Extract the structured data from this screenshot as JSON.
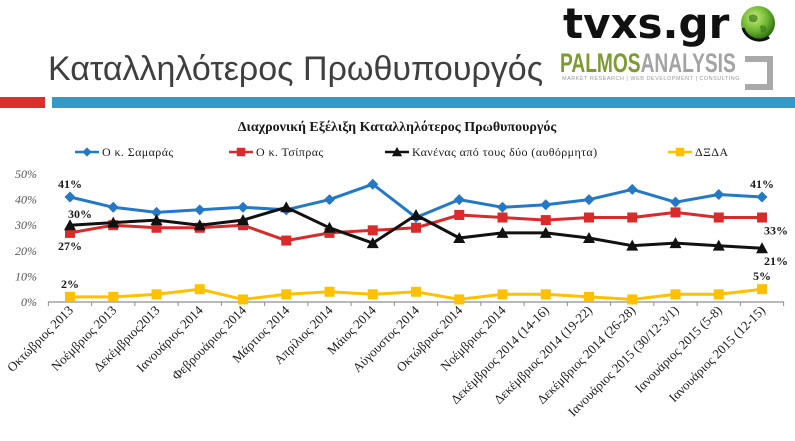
{
  "slide": {
    "title": "Καταλληλότερος Πρωθυπουργός"
  },
  "logos": {
    "tvxs": {
      "text": "tvxs.gr",
      "icon": "globe-icon"
    },
    "palmos": {
      "word1": "PALMOS",
      "word2": "ANALYSIS",
      "tagline": "MARKET RESEARCH | WEB DEVELOPMENT | CONSULTING"
    }
  },
  "colors": {
    "accent_red": "#d9302b",
    "accent_teal": "#3399c6",
    "title_text": "#3f3f3f",
    "palmos_green": "#7e9a33",
    "palmos_gray": "#a3a3a3"
  },
  "chart_data": {
    "type": "line",
    "title": "Διαχρονική Εξέλιξη Καταλληλότερος Πρωθυπουργός",
    "categories": [
      "Οκτώβριος 2013",
      "Νοέμβριος 2013",
      "Δεκέμβριος2013",
      "Ιανουάριος 2014",
      "Φεβρουάριος 2014",
      "Μάρτιος 2014",
      "Απρίλιος 2014",
      "Μάιος 2014",
      "Αύγουστος 2014",
      "Οκτώβριος 2014",
      "Νοέμβριος 2014",
      "Δεκέμβριος 2014 (14-16)",
      "Δεκέμβριος 2014 (19-22)",
      "Δεκέμβριος 2014 (26-28)",
      "Ιανουάριος 2015 (30/12-3/1)",
      "Ιανουάριος 2015 (5-8)",
      "Ιανουάριος 2015 (12-15)"
    ],
    "ylim": [
      0,
      50
    ],
    "yticks": [
      0,
      10,
      20,
      30,
      40,
      50
    ],
    "ytick_labels": [
      "0%",
      "10%",
      "20%",
      "30%",
      "40%",
      "50%"
    ],
    "grid": false,
    "legend_position": "top",
    "series": [
      {
        "name": "Ο κ. Σαμαράς",
        "color": "#2479c6",
        "marker": "diamond",
        "values": [
          41,
          37,
          35,
          36,
          37,
          36,
          40,
          46,
          33,
          40,
          37,
          38,
          40,
          44,
          39,
          42,
          41
        ]
      },
      {
        "name": "Ο κ. Τσίπρας",
        "color": "#d92b2b",
        "marker": "square",
        "values": [
          27,
          30,
          29,
          29,
          30,
          24,
          27,
          28,
          29,
          34,
          33,
          32,
          33,
          33,
          35,
          33,
          33
        ]
      },
      {
        "name": "Κανένας από τους δύο (αυθόρμητα)",
        "color": "#111111",
        "marker": "triangle",
        "values": [
          30,
          31,
          32,
          30,
          32,
          37,
          29,
          23,
          34,
          25,
          27,
          27,
          25,
          22,
          23,
          22,
          21
        ]
      },
      {
        "name": "ΔΞΔΑ",
        "color": "#ffc000",
        "marker": "square",
        "values": [
          2,
          2,
          3,
          5,
          1,
          3,
          4,
          3,
          4,
          1,
          3,
          3,
          2,
          1,
          3,
          3,
          5
        ]
      }
    ],
    "annotations": [
      {
        "series": 0,
        "index": 0,
        "text": "41%",
        "position": "above"
      },
      {
        "series": 2,
        "index": 0,
        "text": "30%",
        "position": "above-right"
      },
      {
        "series": 1,
        "index": 0,
        "text": "27%",
        "position": "below"
      },
      {
        "series": 3,
        "index": 0,
        "text": "2%",
        "position": "above"
      },
      {
        "series": 0,
        "index": 16,
        "text": "41%",
        "position": "above"
      },
      {
        "series": 1,
        "index": 16,
        "text": "33%",
        "position": "below-right"
      },
      {
        "series": 2,
        "index": 16,
        "text": "21%",
        "position": "below-right"
      },
      {
        "series": 3,
        "index": 16,
        "text": "5%",
        "position": "above"
      }
    ]
  }
}
